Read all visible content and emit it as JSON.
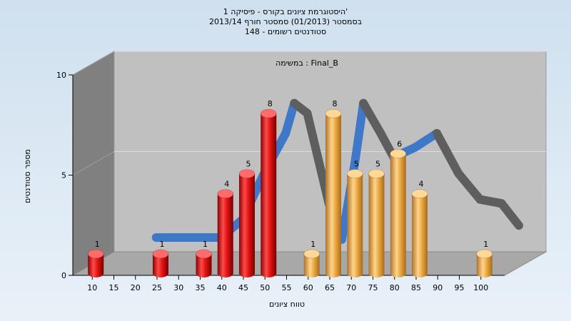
{
  "chart_data": {
    "type": "bar",
    "title_lines": [
      "היסטוגרמת ציונים בקורס - פיסיקה 1'",
      "בסמסטר  (01/2013)  סמסטר חורף 2013/14",
      "סטודנטים רשומים - 148"
    ],
    "inner_label": "במשימה : Final_B",
    "xlabel": "טווח ציונים",
    "ylabel": "מספר סטודנטים",
    "x_ticks": [
      "10",
      "15",
      "20",
      "25",
      "30",
      "35",
      "40",
      "45",
      "50",
      "55",
      "60",
      "65",
      "70",
      "75",
      "80",
      "85",
      "90",
      "95",
      "100"
    ],
    "y_ticks": [
      "0",
      "5",
      "10"
    ],
    "ylim": [
      0,
      10
    ],
    "bars": [
      {
        "x": 10,
        "value": 1,
        "group": "fail"
      },
      {
        "x": 25,
        "value": 1,
        "group": "fail"
      },
      {
        "x": 35,
        "value": 1,
        "group": "fail"
      },
      {
        "x": 40,
        "value": 4,
        "group": "fail"
      },
      {
        "x": 45,
        "value": 5,
        "group": "fail"
      },
      {
        "x": 50,
        "value": 8,
        "group": "fail"
      },
      {
        "x": 60,
        "value": 1,
        "group": "pass"
      },
      {
        "x": 65,
        "value": 8,
        "group": "pass"
      },
      {
        "x": 70,
        "value": 5,
        "group": "pass"
      },
      {
        "x": 75,
        "value": 5,
        "group": "pass"
      },
      {
        "x": 80,
        "value": 6,
        "group": "pass"
      },
      {
        "x": 85,
        "value": 4,
        "group": "pass"
      },
      {
        "x": 100,
        "value": 1,
        "group": "pass"
      }
    ],
    "trend_curve": [
      {
        "x": 20,
        "y": 1.3
      },
      {
        "x": 35,
        "y": 1.3
      },
      {
        "x": 40,
        "y": 2.2
      },
      {
        "x": 45,
        "y": 4.5
      },
      {
        "x": 50,
        "y": 6.5
      },
      {
        "x": 52,
        "y": 8.0
      },
      {
        "x": 55,
        "y": 7.5
      },
      {
        "x": 60,
        "y": 3.0
      },
      {
        "x": 63,
        "y": 1.2
      },
      {
        "x": 66,
        "y": 5.0
      },
      {
        "x": 68,
        "y": 8.0
      },
      {
        "x": 72,
        "y": 6.5
      },
      {
        "x": 75,
        "y": 5.3
      },
      {
        "x": 80,
        "y": 5.8
      },
      {
        "x": 85,
        "y": 6.5
      },
      {
        "x": 90,
        "y": 4.5
      },
      {
        "x": 95,
        "y": 3.2
      },
      {
        "x": 100,
        "y": 3.0
      },
      {
        "x": 104,
        "y": 1.9
      }
    ],
    "grid": true,
    "colors": {
      "fail_bar": "#e01515",
      "pass_bar": "#e8a840",
      "curve_up": "#3f78c8",
      "curve_down": "#5e5e5e",
      "plot_back": "#c0c0c0",
      "plot_side": "#808080",
      "plot_floor": "#a8a8a8"
    }
  }
}
